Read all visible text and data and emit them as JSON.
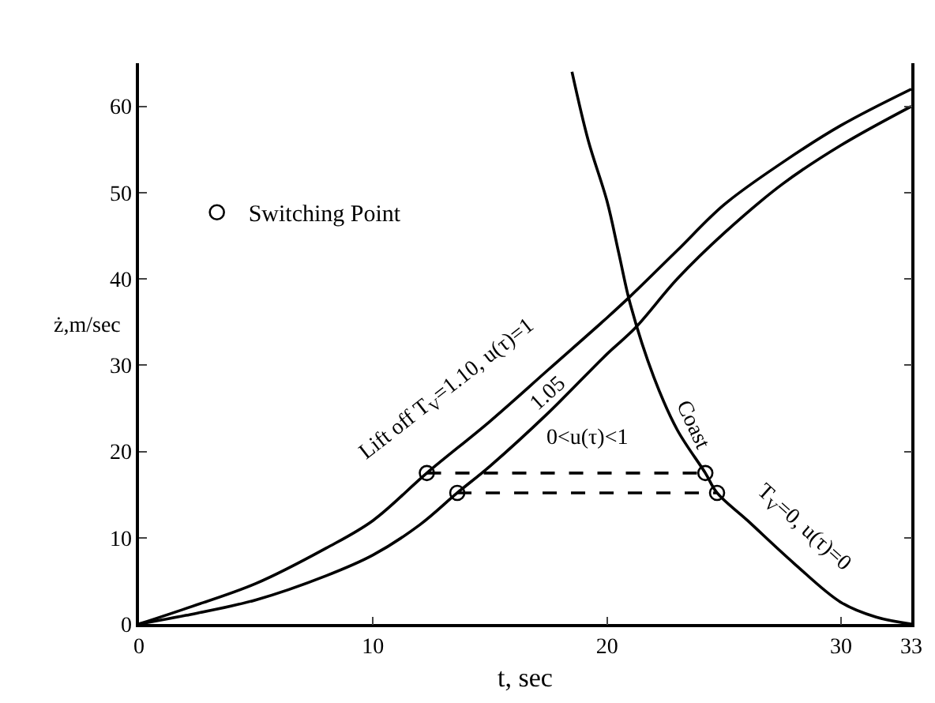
{
  "chart_data": {
    "type": "line",
    "xlabel": "t, sec",
    "ylabel": "ż,m/sec",
    "xlim": [
      0,
      33
    ],
    "ylim": [
      0,
      65
    ],
    "xticks": [
      0,
      10,
      20,
      30,
      33
    ],
    "yticks": [
      0,
      10,
      20,
      30,
      40,
      50,
      60
    ],
    "grid": false,
    "legend": "top left",
    "marker": "none",
    "line_style": "solid",
    "series": [
      {
        "color": "#000000",
        "x": [
          0,
          2,
          5,
          8,
          10,
          12.3,
          15,
          17.5,
          20,
          21,
          23,
          25,
          27.5,
          30,
          33
        ],
        "values": [
          0,
          1.8,
          4.7,
          8.8,
          12,
          17.5,
          23.5,
          29.5,
          35.5,
          38,
          43.3,
          48.6,
          53.5,
          57.8,
          62
        ]
      },
      {
        "color": "#000000",
        "x": [
          0,
          2,
          5,
          8,
          10,
          12,
          13.6,
          15,
          17.5,
          20,
          21.2,
          23,
          25,
          27.5,
          30,
          33
        ],
        "values": [
          0,
          1,
          2.8,
          5.6,
          8,
          11.5,
          15.2,
          18.3,
          24.5,
          31.3,
          34.3,
          40,
          45.3,
          51,
          55.5,
          60
        ]
      },
      {
        "color": "#000000",
        "x": [
          18.5,
          19.2,
          20,
          20.5,
          21,
          22,
          23,
          24.2,
          24.7,
          26,
          28,
          30,
          31.5,
          33
        ],
        "values": [
          64,
          56,
          49,
          43,
          37,
          28.6,
          22.5,
          17.5,
          15.2,
          12,
          7,
          2.5,
          0.8,
          0
        ]
      },
      {
        "color": "#000000",
        "line_style": "dashed",
        "x": [
          12.3,
          24.2
        ],
        "values": [
          17.5,
          17.5
        ]
      },
      {
        "color": "#000000",
        "line_style": "dashed",
        "x": [
          13.6,
          24.7
        ],
        "values": [
          15.2,
          15.2
        ]
      },
      {
        "name": "Switching Point",
        "type": "scatter",
        "marker": "circle",
        "color": "#000000",
        "x": [
          12.3,
          13.6,
          24.2,
          24.7
        ],
        "values": [
          17.5,
          15.2,
          17.5,
          15.2
        ]
      }
    ],
    "annotations": [
      "Lift off T$_{V}$=1.10, u(τ)=1",
      "1.05",
      "0<u(τ)<1",
      "Coast",
      "T$_{V}$=0, u(τ)=0"
    ]
  }
}
